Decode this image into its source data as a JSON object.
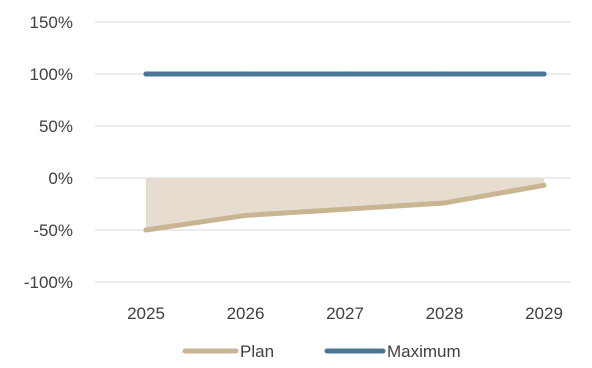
{
  "chart_data": {
    "type": "line",
    "title": "",
    "xlabel": "",
    "ylabel": "",
    "categories": [
      "2025",
      "2026",
      "2027",
      "2028",
      "2029"
    ],
    "ylim": [
      -100,
      150
    ],
    "yticks": [
      150,
      100,
      50,
      0,
      -50,
      -100
    ],
    "ytick_labels": [
      "150%",
      "100%",
      "50%",
      "0%",
      "-50%",
      "-100%"
    ],
    "grid": "horizontal",
    "legend_position": "bottom",
    "series": [
      {
        "name": "Plan",
        "values": [
          -50,
          -36,
          -30,
          -24,
          -7
        ],
        "color": "#c9b592",
        "area_fill": "#e6dccf"
      },
      {
        "name": "Maximum",
        "values": [
          100,
          100,
          100,
          100,
          100
        ],
        "color": "#4b7595"
      }
    ]
  }
}
